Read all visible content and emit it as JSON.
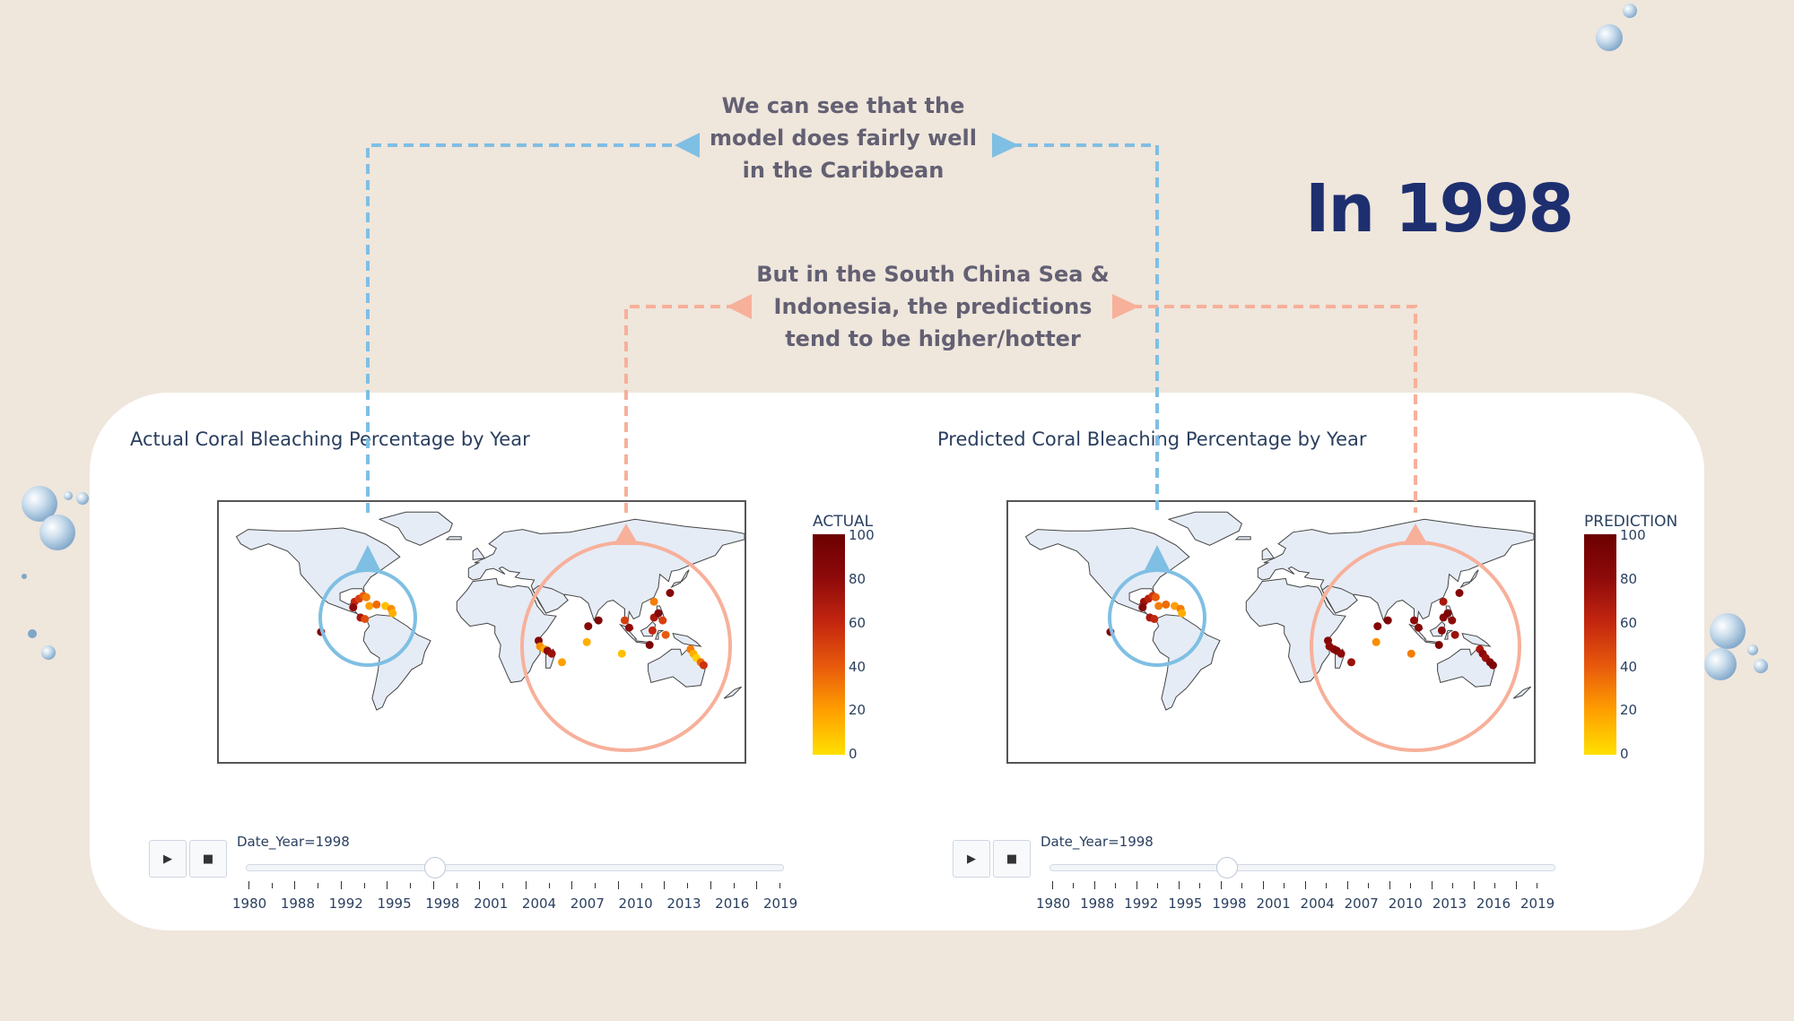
{
  "headline": "In 1998",
  "callouts": {
    "caribbean": "We can see that the\nmodel does fairly well\nin the Caribbean",
    "asia": "But in the South China Sea &\nIndonesia, the predictions\ntend to be higher/hotter"
  },
  "colors": {
    "background": "#efe6dc",
    "headline": "#1e2f6f",
    "blue_annotation": "#7fbfe3",
    "salmon_annotation": "#f7b09a",
    "land": "#e5ecf6",
    "coast": "#444444"
  },
  "charts": [
    {
      "title": "Actual Coral Bleaching Percentage by Year",
      "colorbar": {
        "title": "ACTUAL",
        "ticks": [
          "100",
          "80",
          "60",
          "40",
          "20",
          "0"
        ]
      },
      "slider": {
        "label": "Date_Year=1998",
        "years": [
          "1980",
          "1988",
          "1992",
          "1995",
          "1998",
          "2001",
          "2004",
          "2007",
          "2010",
          "2013",
          "2016",
          "2019"
        ]
      },
      "controls": {
        "play": "▶",
        "stop": "■"
      }
    },
    {
      "title": "Predicted Coral Bleaching Percentage by Year",
      "colorbar": {
        "title": "PREDICTION",
        "ticks": [
          "100",
          "80",
          "60",
          "40",
          "20",
          "0"
        ]
      },
      "slider": {
        "label": "Date_Year=1998",
        "years": [
          "1980",
          "1988",
          "1992",
          "1995",
          "1998",
          "2001",
          "2004",
          "2007",
          "2010",
          "2013",
          "2016",
          "2019"
        ]
      },
      "controls": {
        "play": "▶",
        "stop": "■"
      }
    }
  ],
  "chart_data": [
    {
      "type": "scatter",
      "title": "Actual Coral Bleaching Percentage by Year",
      "year": 1998,
      "colorscale_range": [
        0,
        100
      ],
      "points": [
        {
          "lon": -87,
          "lat": 21,
          "value": 60
        },
        {
          "lon": -84,
          "lat": 23,
          "value": 50
        },
        {
          "lon": -81,
          "lat": 25,
          "value": 40
        },
        {
          "lon": -79,
          "lat": 24,
          "value": 30
        },
        {
          "lon": -77,
          "lat": 18,
          "value": 20
        },
        {
          "lon": -72,
          "lat": 19,
          "value": 35
        },
        {
          "lon": -66,
          "lat": 18,
          "value": 10
        },
        {
          "lon": -62,
          "lat": 16,
          "value": 25
        },
        {
          "lon": -61,
          "lat": 13,
          "value": 15
        },
        {
          "lon": -83,
          "lat": 10,
          "value": 70
        },
        {
          "lon": -80,
          "lat": 9,
          "value": 45
        },
        {
          "lon": -110,
          "lat": 0,
          "value": 90
        },
        {
          "lon": -88,
          "lat": 17,
          "value": 80
        },
        {
          "lon": 39,
          "lat": -6,
          "value": 85
        },
        {
          "lon": 40,
          "lat": -10,
          "value": 25
        },
        {
          "lon": 43,
          "lat": -12,
          "value": 15
        },
        {
          "lon": 45,
          "lat": -13,
          "value": 80
        },
        {
          "lon": 48,
          "lat": -15,
          "value": 75
        },
        {
          "lon": 55,
          "lat": -21,
          "value": 20
        },
        {
          "lon": 73,
          "lat": 4,
          "value": 85
        },
        {
          "lon": 80,
          "lat": 8,
          "value": 90
        },
        {
          "lon": 72,
          "lat": -7,
          "value": 15
        },
        {
          "lon": 98,
          "lat": 8,
          "value": 50
        },
        {
          "lon": 101,
          "lat": 3,
          "value": 80
        },
        {
          "lon": 96,
          "lat": -15,
          "value": 10
        },
        {
          "lon": 118,
          "lat": 10,
          "value": 70
        },
        {
          "lon": 121,
          "lat": 13,
          "value": 85
        },
        {
          "lon": 124,
          "lat": 8,
          "value": 50
        },
        {
          "lon": 117,
          "lat": 1,
          "value": 60
        },
        {
          "lon": 126,
          "lat": -2,
          "value": 40
        },
        {
          "lon": 115,
          "lat": -9,
          "value": 90
        },
        {
          "lon": 129,
          "lat": 27,
          "value": 85
        },
        {
          "lon": 118,
          "lat": 21,
          "value": 30
        },
        {
          "lon": 143,
          "lat": -12,
          "value": 30
        },
        {
          "lon": 145,
          "lat": -15,
          "value": 15
        },
        {
          "lon": 147,
          "lat": -18,
          "value": 5
        },
        {
          "lon": 150,
          "lat": -21,
          "value": 35
        },
        {
          "lon": 152,
          "lat": -23,
          "value": 55
        }
      ]
    },
    {
      "type": "scatter",
      "title": "Predicted Coral Bleaching Percentage by Year",
      "year": 1998,
      "colorscale_range": [
        0,
        100
      ],
      "points": [
        {
          "lon": -87,
          "lat": 21,
          "value": 75
        },
        {
          "lon": -84,
          "lat": 23,
          "value": 65
        },
        {
          "lon": -81,
          "lat": 25,
          "value": 55
        },
        {
          "lon": -79,
          "lat": 24,
          "value": 40
        },
        {
          "lon": -77,
          "lat": 18,
          "value": 30
        },
        {
          "lon": -72,
          "lat": 19,
          "value": 35
        },
        {
          "lon": -66,
          "lat": 18,
          "value": 20
        },
        {
          "lon": -62,
          "lat": 16,
          "value": 30
        },
        {
          "lon": -61,
          "lat": 13,
          "value": 15
        },
        {
          "lon": -83,
          "lat": 10,
          "value": 70
        },
        {
          "lon": -80,
          "lat": 9,
          "value": 60
        },
        {
          "lon": -110,
          "lat": 0,
          "value": 90
        },
        {
          "lon": -88,
          "lat": 17,
          "value": 85
        },
        {
          "lon": 39,
          "lat": -6,
          "value": 85
        },
        {
          "lon": 40,
          "lat": -10,
          "value": 80
        },
        {
          "lon": 43,
          "lat": -12,
          "value": 80
        },
        {
          "lon": 45,
          "lat": -13,
          "value": 85
        },
        {
          "lon": 48,
          "lat": -15,
          "value": 80
        },
        {
          "lon": 55,
          "lat": -21,
          "value": 75
        },
        {
          "lon": 73,
          "lat": 4,
          "value": 85
        },
        {
          "lon": 80,
          "lat": 8,
          "value": 90
        },
        {
          "lon": 72,
          "lat": -7,
          "value": 25
        },
        {
          "lon": 98,
          "lat": 8,
          "value": 80
        },
        {
          "lon": 101,
          "lat": 3,
          "value": 85
        },
        {
          "lon": 96,
          "lat": -15,
          "value": 30
        },
        {
          "lon": 118,
          "lat": 10,
          "value": 85
        },
        {
          "lon": 121,
          "lat": 13,
          "value": 90
        },
        {
          "lon": 124,
          "lat": 8,
          "value": 80
        },
        {
          "lon": 117,
          "lat": 1,
          "value": 80
        },
        {
          "lon": 126,
          "lat": -2,
          "value": 75
        },
        {
          "lon": 115,
          "lat": -9,
          "value": 90
        },
        {
          "lon": 129,
          "lat": 27,
          "value": 85
        },
        {
          "lon": 118,
          "lat": 21,
          "value": 70
        },
        {
          "lon": 143,
          "lat": -12,
          "value": 70
        },
        {
          "lon": 145,
          "lat": -15,
          "value": 80
        },
        {
          "lon": 147,
          "lat": -18,
          "value": 75
        },
        {
          "lon": 150,
          "lat": -21,
          "value": 85
        },
        {
          "lon": 152,
          "lat": -23,
          "value": 90
        }
      ]
    }
  ]
}
